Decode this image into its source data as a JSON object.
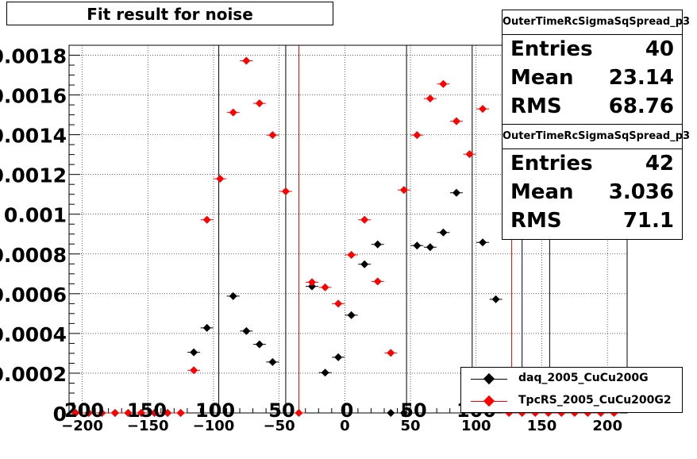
{
  "chart_data": {
    "type": "scatter",
    "title": "Fit result for noise",
    "xlim": [
      -210,
      215
    ],
    "ylim": [
      0,
      0.00185
    ],
    "x_ticks": [
      -200,
      -150,
      -100,
      -50,
      0,
      50,
      100,
      150,
      200
    ],
    "x_tick_labels": [
      "−200",
      "−150",
      "−100",
      "−50",
      "0",
      "50",
      "100",
      "150",
      "200"
    ],
    "y_ticks": [
      0,
      0.0002,
      0.0004,
      0.0006,
      0.0008,
      0.001,
      0.0012,
      0.0014,
      0.0016,
      0.0018
    ],
    "y_tick_labels": [
      "0",
      "0.0002",
      "0.0004",
      "0.0006",
      "0.0008",
      "0.001",
      "0.0012",
      "0.0014",
      "0.0016",
      "0.0018"
    ],
    "overlay_x_labels": [
      "200",
      "150",
      "100",
      "50",
      "0",
      "50",
      "100"
    ],
    "grid": true,
    "vertical_lines": [
      {
        "x": -96,
        "color": "#000000"
      },
      {
        "x": -45,
        "color": "#000000"
      },
      {
        "x": -35,
        "color": "#ff0000"
      },
      {
        "x": 47,
        "color": "#000000"
      },
      {
        "x": 97,
        "color": "#000000"
      },
      {
        "x": 127,
        "color": "#ff0000"
      },
      {
        "x": 135,
        "color": "#000000"
      },
      {
        "x": 156,
        "color": "#000000"
      }
    ],
    "legend_position": "bottom-right",
    "series": [
      {
        "name": "daq_2005_CuCu200G",
        "color": "#000000",
        "points": [
          [
            -115,
            0.000305
          ],
          [
            -105,
            0.000428
          ],
          [
            -85,
            0.000588
          ],
          [
            -75,
            0.000412
          ],
          [
            -65,
            0.000345
          ],
          [
            -55,
            0.000256
          ],
          [
            -25,
            0.000637
          ],
          [
            -15,
            0.000203
          ],
          [
            -5,
            0.00028
          ],
          [
            5,
            0.000492
          ],
          [
            15,
            0.000748
          ],
          [
            25,
            0.000848
          ],
          [
            55,
            0.000842
          ],
          [
            65,
            0.000834
          ],
          [
            75,
            0.000908
          ],
          [
            85,
            0.001108
          ],
          [
            105,
            0.000858
          ],
          [
            115,
            0.000572
          ],
          [
            -205,
            0
          ],
          [
            -195,
            0
          ],
          [
            -185,
            0
          ],
          [
            -175,
            0
          ],
          [
            -165,
            0
          ],
          [
            -155,
            0
          ],
          [
            -145,
            0
          ],
          [
            -135,
            0
          ],
          [
            -125,
            0
          ],
          [
            35,
            0
          ],
          [
            45,
            0
          ]
        ]
      },
      {
        "name": "TpcRS_2005_CuCu200G2",
        "color": "#ff0000",
        "points": [
          [
            -115,
            0.000215
          ],
          [
            -105,
            0.000972
          ],
          [
            -95,
            0.001178
          ],
          [
            -85,
            0.001512
          ],
          [
            -75,
            0.001772
          ],
          [
            -65,
            0.001558
          ],
          [
            -55,
            0.001398
          ],
          [
            -45,
            0.001115
          ],
          [
            -25,
            0.000658
          ],
          [
            -15,
            0.000632
          ],
          [
            -5,
            0.00055
          ],
          [
            5,
            0.000795
          ],
          [
            15,
            0.000972
          ],
          [
            25,
            0.000662
          ],
          [
            35,
            0.000302
          ],
          [
            45,
            0.001122
          ],
          [
            55,
            0.001398
          ],
          [
            65,
            0.001582
          ],
          [
            75,
            0.001655
          ],
          [
            85,
            0.001468
          ],
          [
            95,
            0.001302
          ],
          [
            105,
            0.00153
          ],
          [
            -205,
            0
          ],
          [
            -195,
            0
          ],
          [
            -185,
            0
          ],
          [
            -175,
            0
          ],
          [
            -165,
            0
          ],
          [
            -155,
            0
          ],
          [
            -145,
            0
          ],
          [
            -135,
            0
          ],
          [
            -125,
            0
          ],
          [
            -35,
            0
          ],
          [
            125,
            0
          ],
          [
            135,
            0
          ],
          [
            145,
            0
          ],
          [
            155,
            0
          ],
          [
            165,
            0
          ],
          [
            175,
            0
          ],
          [
            185,
            0
          ],
          [
            195,
            0
          ],
          [
            205,
            0
          ]
        ]
      }
    ]
  },
  "stats_boxes": [
    {
      "name": "OuterTimeRcSigmaSqSpread_p3",
      "entries_label": "Entries",
      "entries": "40",
      "mean_label": "Mean",
      "mean": "23.14",
      "rms_label": "RMS",
      "rms": "68.76"
    },
    {
      "name": "OuterTimeRcSigmaSqSpread_p3",
      "entries_label": "Entries",
      "entries": "42",
      "mean_label": "Mean",
      "mean": "3.036",
      "rms_label": "RMS",
      "rms": "71.1"
    }
  ]
}
